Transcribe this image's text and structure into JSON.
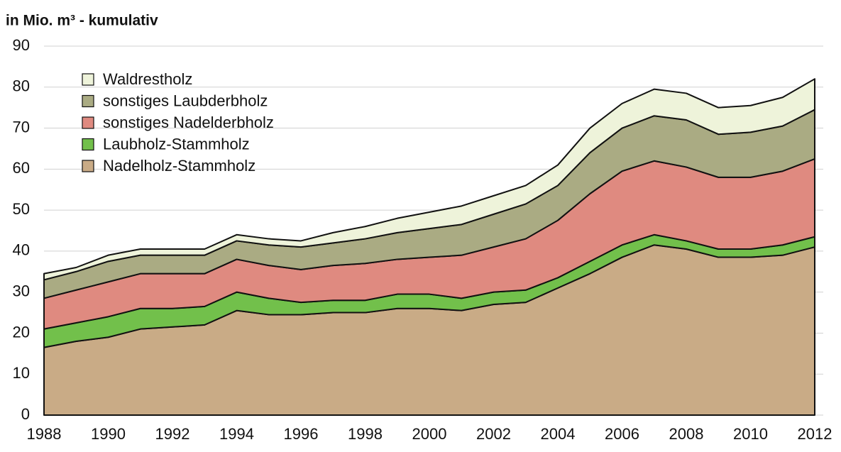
{
  "chart_data": {
    "type": "stacked-area",
    "title": "in Mio. m³ - kumulativ",
    "x": [
      1988,
      1989,
      1990,
      1991,
      1992,
      1993,
      1994,
      1995,
      1996,
      1997,
      1998,
      1999,
      2000,
      2001,
      2002,
      2003,
      2004,
      2005,
      2006,
      2007,
      2008,
      2009,
      2010,
      2011,
      2012
    ],
    "xlim": [
      1988,
      2012
    ],
    "xticks": [
      1988,
      1990,
      1992,
      1994,
      1996,
      1998,
      2000,
      2002,
      2004,
      2006,
      2008,
      2010,
      2012
    ],
    "ylim": [
      0,
      90
    ],
    "yticks": [
      0,
      10,
      20,
      30,
      40,
      50,
      60,
      70,
      80,
      90
    ],
    "grid": true,
    "legend": "top-left",
    "series": [
      {
        "name": "Nadelholz-Stammholz",
        "color": "#c9ab86",
        "values": [
          16.5,
          18,
          19,
          21,
          21.5,
          22,
          25.5,
          24.5,
          24.5,
          25,
          25,
          26,
          26,
          25.5,
          27,
          27.5,
          31,
          34.5,
          38.5,
          41.5,
          40.5,
          38.5,
          38.5,
          39,
          41
        ]
      },
      {
        "name": "Laubholz-Stammholz",
        "color": "#72c04b",
        "values": [
          4.5,
          4.5,
          5,
          5,
          4.5,
          4.5,
          4.5,
          4,
          3,
          3,
          3,
          3.5,
          3.5,
          3,
          3,
          3,
          2.5,
          3,
          3,
          2.5,
          2,
          2,
          2,
          2.5,
          2.5
        ]
      },
      {
        "name": "sonstiges Nadelderbholz",
        "color": "#df8a80",
        "values": [
          7.5,
          8,
          8.5,
          8.5,
          8.5,
          8,
          8,
          8,
          8,
          8.5,
          9,
          8.5,
          9,
          10.5,
          11,
          12.5,
          14,
          16.5,
          18,
          18,
          18,
          17.5,
          17.5,
          18,
          19
        ]
      },
      {
        "name": "sonstiges Laubderbholz",
        "color": "#aaab83",
        "values": [
          4.5,
          4.5,
          5,
          4.5,
          4.5,
          4.5,
          4.5,
          5,
          5.5,
          5.5,
          6,
          6.5,
          7,
          7.5,
          8,
          8.5,
          8.5,
          10,
          10.5,
          11,
          11.5,
          10.5,
          11,
          11,
          12
        ]
      },
      {
        "name": "Waldrestholz",
        "color": "#eef3da",
        "values": [
          1.5,
          1,
          1.5,
          1.5,
          1.5,
          1.5,
          1.5,
          1.5,
          1.5,
          2.5,
          3,
          3.5,
          4,
          4.5,
          4.5,
          4.5,
          5,
          6,
          6,
          6.5,
          6.5,
          6.5,
          6.5,
          7,
          7.5
        ]
      }
    ]
  }
}
